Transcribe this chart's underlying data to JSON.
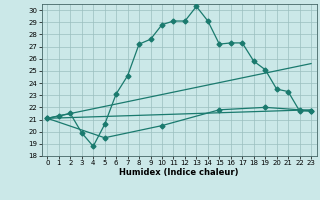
{
  "xlabel": "Humidex (Indice chaleur)",
  "xlim": [
    -0.5,
    23.5
  ],
  "ylim": [
    18,
    30.5
  ],
  "yticks": [
    18,
    19,
    20,
    21,
    22,
    23,
    24,
    25,
    26,
    27,
    28,
    29,
    30
  ],
  "xticks": [
    0,
    1,
    2,
    3,
    4,
    5,
    6,
    7,
    8,
    9,
    10,
    11,
    12,
    13,
    14,
    15,
    16,
    17,
    18,
    19,
    20,
    21,
    22,
    23
  ],
  "bg_color": "#cbe8e8",
  "grid_color": "#9bbfbf",
  "line_color": "#1a7a6e",
  "line1_x": [
    0,
    1,
    2,
    3,
    4,
    5,
    6,
    7,
    8,
    9,
    10,
    11,
    12,
    13,
    14,
    15,
    16,
    17,
    18,
    19,
    20,
    21,
    22,
    23
  ],
  "line1_y": [
    21.1,
    21.3,
    21.5,
    19.9,
    18.8,
    20.6,
    23.1,
    24.6,
    27.2,
    27.6,
    28.8,
    29.1,
    29.1,
    30.3,
    29.1,
    27.2,
    27.3,
    27.3,
    25.8,
    25.1,
    23.5,
    23.3,
    21.7,
    21.7
  ],
  "line2_x": [
    0,
    23
  ],
  "line2_y": [
    21.1,
    25.6
  ],
  "line3_x": [
    0,
    23
  ],
  "line3_y": [
    21.1,
    21.8
  ],
  "line4_x": [
    0,
    5,
    10,
    15,
    19,
    22,
    23
  ],
  "line4_y": [
    21.1,
    19.5,
    20.5,
    21.8,
    22.0,
    21.8,
    21.7
  ]
}
